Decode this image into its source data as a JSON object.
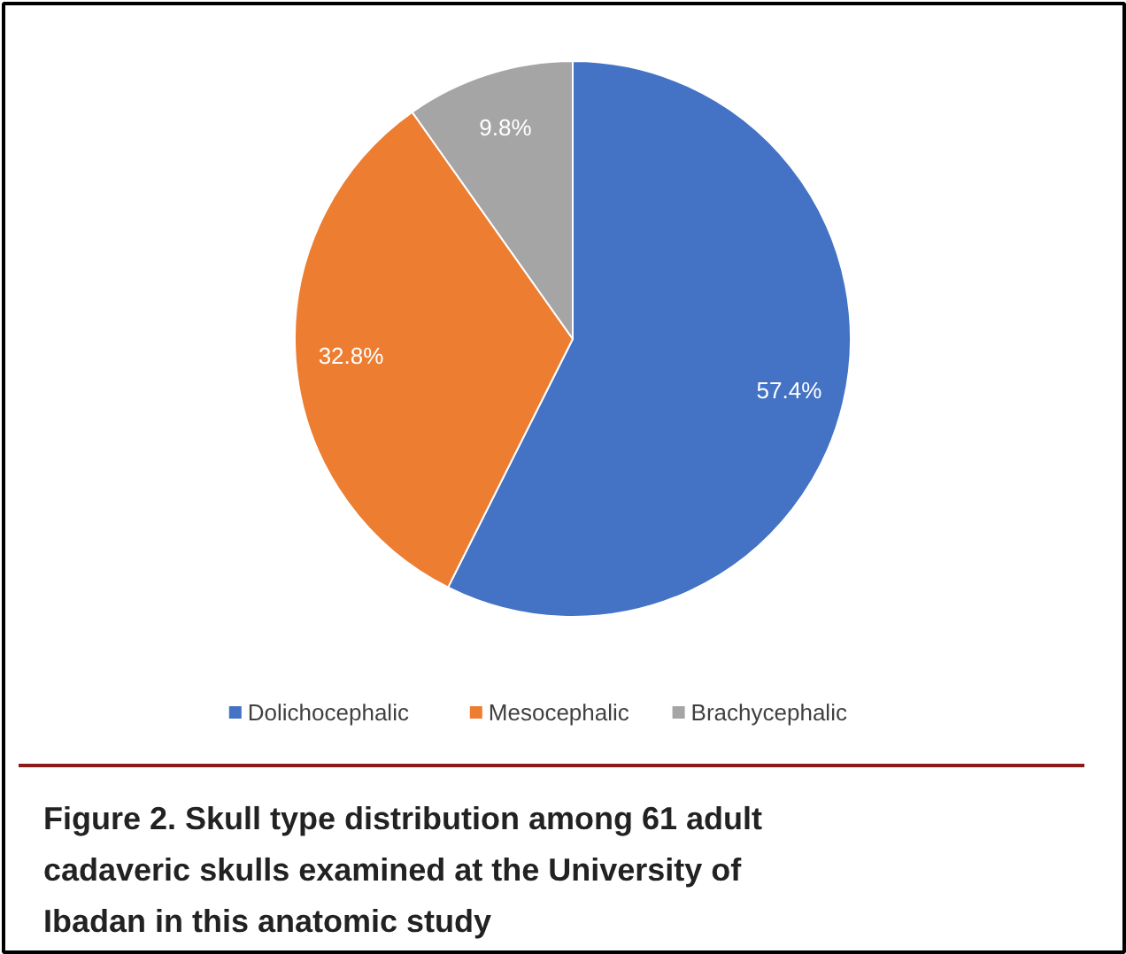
{
  "chart_data": {
    "type": "pie",
    "categories": [
      "Dolichocephalic",
      "Mesocephalic",
      "Brachycephalic"
    ],
    "values": [
      57.4,
      32.8,
      9.8
    ],
    "colors": [
      "#4472c4",
      "#ed7d31",
      "#a5a5a5"
    ],
    "value_labels": [
      "57.4%",
      "32.8%",
      "9.8%"
    ],
    "legend": "bottom",
    "annotations": [
      "Figure 2. Skull type distribution among 61 adult cadaveric skulls examined at the University of Ibadan in this anatomic study"
    ]
  }
}
